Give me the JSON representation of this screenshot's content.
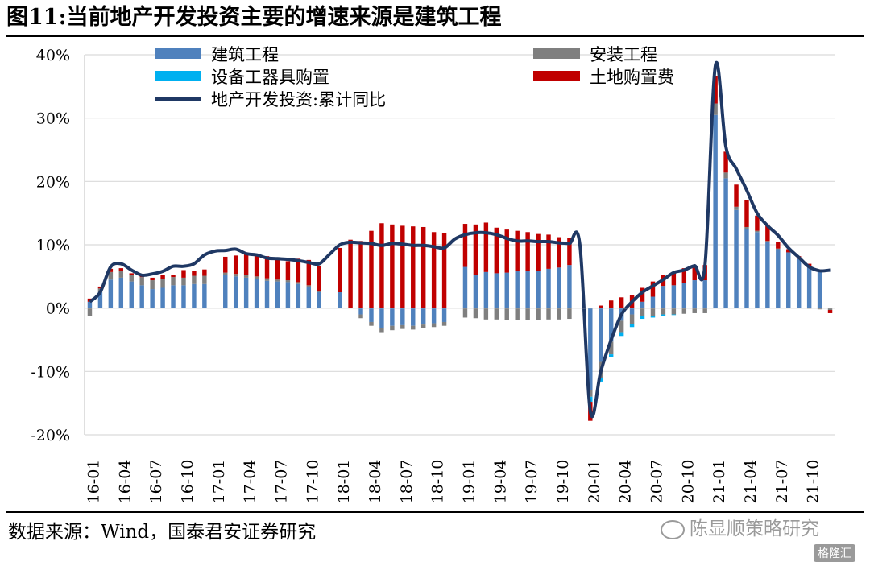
{
  "title": "图11:当前地产开发投资主要的增速来源是建筑工程",
  "source": "数据来源：Wind，国泰君安证券研究",
  "watermark": "陈显顺策略研究",
  "corner_logo": "格隆汇",
  "colors": {
    "construction": "#4f81bd",
    "installation": "#7f7f7f",
    "equipment": "#00b0f0",
    "land": "#c00000",
    "total": "#1f3864"
  },
  "chart_data": {
    "type": "bar",
    "stacked": true,
    "ylim": [
      -20,
      40
    ],
    "yticks": [
      -20,
      -10,
      0,
      10,
      20,
      30,
      40
    ],
    "ytick_labels": [
      "-20%",
      "-10%",
      "0%",
      "10%",
      "20%",
      "30%",
      "40%"
    ],
    "grid": true,
    "legend_position": "top",
    "x_tick_labels": [
      "16-01",
      "16-04",
      "16-07",
      "16-10",
      "17-01",
      "17-04",
      "17-07",
      "17-10",
      "18-01",
      "18-04",
      "18-07",
      "18-10",
      "19-01",
      "19-04",
      "19-07",
      "19-10",
      "20-01",
      "20-04",
      "20-07",
      "20-10",
      "21-01",
      "21-04",
      "21-07",
      "21-10"
    ],
    "x_tick_index": [
      0,
      3,
      6,
      9,
      12,
      15,
      18,
      21,
      24,
      27,
      30,
      33,
      36,
      39,
      42,
      45,
      48,
      51,
      54,
      57,
      60,
      63,
      66,
      69
    ],
    "series": [
      {
        "name": "建筑工程",
        "kind": "bar",
        "color_key": "construction",
        "values": [
          1,
          2.5,
          4.5,
          4.8,
          4.2,
          3.6,
          3.0,
          3.2,
          3.6,
          3.6,
          3.8,
          3.8,
          0,
          5.2,
          5.0,
          4.8,
          4.6,
          4.3,
          4.2,
          4.1,
          3.8,
          3.3,
          2.5,
          0,
          2.5,
          0,
          -1.0,
          -2.2,
          -3.2,
          -2.8,
          -2.7,
          -2.8,
          -2.6,
          -2.4,
          -2.2,
          0,
          6.5,
          5.2,
          5.7,
          5.5,
          5.6,
          5.8,
          5.8,
          5.9,
          6.2,
          6.4,
          6.8,
          0,
          -13.0,
          -8.5,
          -5.3,
          -2.0,
          -1.0,
          1.0,
          1.8,
          3.5,
          3.6,
          4.0,
          4.4,
          4.4,
          30.5,
          20.5,
          15.5,
          12.5,
          12.0,
          10.5,
          9.3,
          8.8,
          7.8,
          6.6,
          5.8,
          0
        ]
      },
      {
        "name": "安装工程",
        "kind": "bar",
        "color_key": "installation",
        "values": [
          -1.2,
          0.6,
          1.2,
          1.0,
          1.0,
          1.3,
          1.4,
          1.4,
          1.3,
          1.2,
          1.3,
          1.3,
          0,
          0.4,
          0.4,
          0.4,
          0.4,
          0.4,
          0.3,
          0.3,
          0.3,
          0.3,
          0.2,
          0,
          0,
          0,
          -0.6,
          -0.6,
          -0.6,
          -0.7,
          -0.6,
          -0.6,
          -0.6,
          -0.6,
          -0.6,
          0,
          -1.5,
          -1.6,
          -1.8,
          -1.8,
          -1.9,
          -1.9,
          -1.9,
          -1.9,
          -1.8,
          -1.8,
          -1.7,
          0,
          -1.0,
          -2.5,
          -2.0,
          -1.8,
          -1.5,
          -1.3,
          -1.2,
          -1.0,
          -1.0,
          -0.9,
          -0.8,
          -0.8,
          1.8,
          0.9,
          0.5,
          0.3,
          0.2,
          0.1,
          0.1,
          0,
          0,
          -0.1,
          -0.2,
          -0.3
        ]
      },
      {
        "name": "设备工器具购置",
        "kind": "bar",
        "color_key": "equipment",
        "values": [
          0,
          0,
          0,
          0,
          0,
          0,
          0,
          0,
          0,
          0,
          0,
          0,
          0,
          0,
          0,
          0,
          0,
          0,
          0,
          0,
          0,
          0,
          0,
          0,
          0,
          0,
          0,
          0,
          0,
          0,
          0,
          0,
          0,
          0,
          0,
          0,
          0,
          0,
          0,
          0,
          0,
          0,
          0,
          0,
          0,
          0,
          0,
          0,
          -0.8,
          -0.6,
          -0.4,
          -0.6,
          -0.5,
          -0.4,
          -0.3,
          -0.2,
          -0.1,
          0,
          0,
          0,
          0,
          0,
          0,
          0,
          0,
          0,
          0,
          0,
          0,
          0,
          0,
          0
        ]
      },
      {
        "name": "土地购置费",
        "kind": "bar",
        "color_key": "land",
        "values": [
          0.5,
          0.3,
          0.5,
          0.5,
          0.3,
          0.3,
          0.4,
          0.6,
          0.3,
          1.2,
          0.8,
          1.0,
          0,
          2.5,
          2.9,
          3.3,
          3.5,
          3.5,
          3.3,
          3.0,
          3.7,
          4.0,
          4.0,
          0,
          7.0,
          10.8,
          10.6,
          12.2,
          13.4,
          13.2,
          13.0,
          12.9,
          12.8,
          12.0,
          11.8,
          0,
          6.8,
          8.0,
          7.8,
          7.2,
          6.8,
          6.4,
          6.2,
          5.8,
          5.4,
          4.8,
          4.3,
          0,
          -3.0,
          0.4,
          1.2,
          1.7,
          2.0,
          2.2,
          2.4,
          1.7,
          2.1,
          2.3,
          2.0,
          2.4,
          4.3,
          3.3,
          3.5,
          4.2,
          2.4,
          2.6,
          1.0,
          0.5,
          0.4,
          0.4,
          0.3,
          -0.5
        ]
      },
      {
        "name": "地产开发投资:累计同比",
        "kind": "line",
        "color_key": "total",
        "values": [
          1,
          2.5,
          6.5,
          7,
          6,
          5.2,
          5.4,
          5.8,
          6.6,
          6.6,
          7.0,
          8.4,
          9.0,
          9.1,
          9.3,
          8.6,
          8.4,
          7.9,
          7.8,
          7.7,
          7.5,
          7.2,
          7.0,
          8.5,
          10.0,
          10.4,
          10.3,
          10.2,
          9.9,
          10.2,
          10.1,
          9.9,
          9.9,
          9.7,
          9.5,
          10.9,
          11.6,
          11.9,
          11.9,
          11.6,
          11.0,
          10.6,
          10.6,
          10.5,
          10.5,
          10.3,
          10.2,
          10.0,
          -16.3,
          -10.0,
          -5.0,
          -1.0,
          1.0,
          2.5,
          3.5,
          4.5,
          5.6,
          6.0,
          6.7,
          6.8,
          38.3,
          25.5,
          22.0,
          18.6,
          15.0,
          13.0,
          11.5,
          9.5,
          8.0,
          6.5,
          5.9,
          6.0
        ]
      }
    ]
  }
}
